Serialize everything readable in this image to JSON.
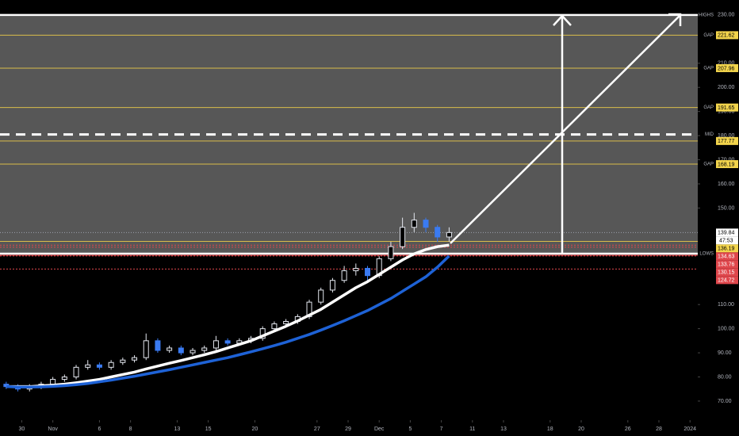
{
  "chart_data": {
    "type": "candlestick",
    "xlim": [
      -1.4,
      43.5
    ],
    "ylim": [
      62.1,
      236.2
    ],
    "xticks": [
      {
        "value": 0,
        "label": "30"
      },
      {
        "value": 2,
        "label": "Nov"
      },
      {
        "value": 5,
        "label": "6"
      },
      {
        "value": 7,
        "label": "8"
      },
      {
        "value": 10,
        "label": "13"
      },
      {
        "value": 12,
        "label": "15"
      },
      {
        "value": 15,
        "label": "20"
      },
      {
        "value": 19,
        "label": "27"
      },
      {
        "value": 21,
        "label": "29"
      },
      {
        "value": 23,
        "label": "Dec"
      },
      {
        "value": 25,
        "label": "5"
      },
      {
        "value": 27,
        "label": "7"
      },
      {
        "value": 29,
        "label": "11"
      },
      {
        "value": 31,
        "label": "13"
      },
      {
        "value": 34,
        "label": "18"
      },
      {
        "value": 36,
        "label": "20"
      },
      {
        "value": 39,
        "label": "26"
      },
      {
        "value": 41,
        "label": "28"
      },
      {
        "value": 43,
        "label": "2024"
      }
    ],
    "yticks": [
      {
        "value": 230,
        "label": "230.00"
      },
      {
        "value": 210,
        "label": "210.00"
      },
      {
        "value": 200,
        "label": "200.00"
      },
      {
        "value": 190,
        "label": "190.00"
      },
      {
        "value": 180,
        "label": "180.00"
      },
      {
        "value": 170,
        "label": "170.00"
      },
      {
        "value": 160,
        "label": "160.00"
      },
      {
        "value": 150,
        "label": "150.00"
      },
      {
        "value": 110,
        "label": "110.00"
      },
      {
        "value": 100,
        "label": "100.00"
      },
      {
        "value": 90,
        "label": "90.00"
      },
      {
        "value": 80,
        "label": "80.00"
      },
      {
        "value": 70,
        "label": "70.00"
      }
    ],
    "x": [
      -1,
      -0.25,
      0.5,
      1.25,
      2,
      2.75,
      3.5,
      4.25,
      5,
      5.75,
      6.5,
      7.25,
      8,
      8.75,
      9.5,
      10.25,
      11,
      11.75,
      12.5,
      13.25,
      14,
      14.75,
      15.5,
      16.25,
      17,
      17.75,
      18.5,
      19.25,
      20,
      20.75,
      21.5,
      22.25,
      23,
      23.75,
      24.5,
      25.25,
      26,
      26.75,
      27.5
    ],
    "open": [
      77,
      76,
      75,
      76,
      77,
      79,
      80,
      84,
      85,
      84,
      86,
      87,
      88,
      95,
      91,
      92,
      90,
      91,
      92,
      95,
      94,
      95,
      96,
      100,
      102,
      103,
      105,
      111,
      116,
      120,
      124,
      125,
      122,
      129,
      134,
      142,
      145,
      142,
      138
    ],
    "high": [
      78,
      77,
      77,
      78,
      80,
      81,
      85,
      87,
      86,
      87,
      88,
      89,
      98,
      96,
      93,
      93,
      92,
      93,
      97,
      96,
      96,
      97,
      101,
      103,
      104,
      106,
      112,
      117,
      121,
      126,
      127,
      126,
      130,
      136,
      146,
      148,
      146,
      143,
      142
    ],
    "low": [
      75,
      74,
      74,
      75,
      76,
      78,
      79,
      83,
      83,
      83,
      85,
      86,
      87,
      90,
      90,
      89,
      89,
      90,
      91,
      93,
      93,
      94,
      95,
      99,
      101,
      102,
      104,
      110,
      115,
      119,
      122,
      119,
      121,
      128,
      133,
      140,
      140,
      136,
      136
    ],
    "close": [
      76,
      75,
      76,
      77,
      79,
      80,
      84,
      85,
      84,
      86,
      87,
      88,
      95,
      91,
      92,
      90,
      91,
      92,
      95,
      94,
      95,
      96,
      100,
      102,
      103,
      105,
      111,
      116,
      120,
      124,
      125,
      122,
      129,
      134,
      142,
      145,
      142,
      138,
      139.84
    ],
    "series": [
      {
        "color": "#ffffff",
        "values": [
          76,
          76,
          76,
          76.3,
          76.6,
          77,
          77.6,
          78.3,
          79,
          80,
          81,
          82,
          83.3,
          84.5,
          85.7,
          86.8,
          88,
          89.2,
          90.5,
          92,
          93.5,
          95,
          97,
          99,
          101,
          103.2,
          105.6,
          108,
          111,
          114,
          117,
          119.5,
          122.5,
          125.5,
          128.5,
          131,
          132.8,
          134,
          134.63
        ]
      },
      {
        "color": "#1e62d6",
        "values": [
          76,
          75.8,
          75.8,
          75.9,
          76.1,
          76.4,
          76.8,
          77.3,
          78,
          78.7,
          79.5,
          80.3,
          81.2,
          82.1,
          83,
          84,
          85,
          86,
          87,
          88,
          89.2,
          90.4,
          91.7,
          93,
          94.4,
          96,
          97.6,
          99.4,
          101.3,
          103.3,
          105.4,
          107.5,
          110,
          112.5,
          115.5,
          118.5,
          121.5,
          125.5,
          130.15
        ]
      }
    ],
    "highs": {
      "label": "HIGHS",
      "value": 230
    },
    "lows": {
      "label": "LOWS",
      "value": 131.1
    },
    "mid": {
      "label": "MID",
      "value": 180.5
    },
    "gaps": {
      "label": "GAP",
      "values": [
        221.62,
        207.96,
        191.65,
        168.19
      ]
    },
    "yellow_tags": [
      177.77,
      136.19
    ],
    "red_tags": [
      134.63,
      133.76,
      130.15,
      124.72
    ],
    "last_price": 139.84,
    "countdown": "47:53"
  }
}
